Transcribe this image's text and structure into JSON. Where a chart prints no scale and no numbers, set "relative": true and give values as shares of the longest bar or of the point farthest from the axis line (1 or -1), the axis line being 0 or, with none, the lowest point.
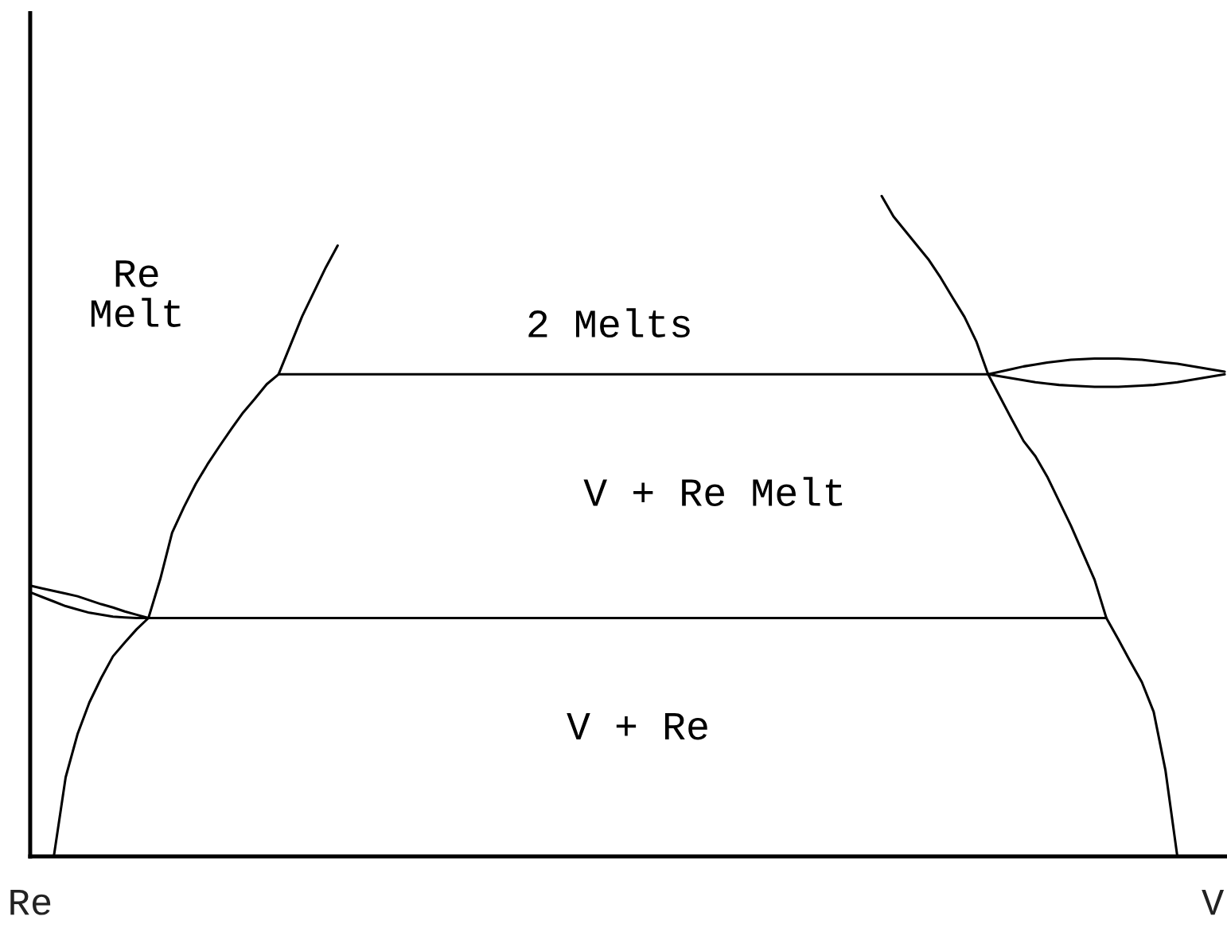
{
  "chart_data": {
    "type": "line",
    "relative": true,
    "tick_labels": "x",
    "categories": [
      "Re",
      null,
      null,
      null,
      null,
      null,
      null,
      null,
      null,
      null,
      null,
      null,
      null,
      null,
      null,
      null,
      null,
      null,
      null,
      null,
      null,
      null,
      null,
      null,
      null,
      null,
      null,
      null,
      null,
      null,
      null,
      null,
      null,
      null,
      null,
      null,
      null,
      null,
      null,
      null,
      null,
      null,
      null,
      null,
      null,
      null,
      null,
      null,
      null,
      null,
      null,
      null,
      null,
      null,
      null,
      null,
      null,
      null,
      null,
      null,
      null,
      null,
      null,
      null,
      null,
      null,
      null,
      null,
      null,
      null,
      null,
      null,
      null,
      null,
      null,
      null,
      null,
      null,
      null,
      null,
      null,
      null,
      null,
      null,
      null,
      null,
      null,
      null,
      null,
      null,
      null,
      null,
      null,
      null,
      null,
      null,
      null,
      null,
      null,
      null,
      "V",
      null
    ],
    "annotations": [
      "Re\nMelt",
      "2 Melts",
      "V + Re Melt",
      "V + Re"
    ],
    "series": [
      {
        "color": "#000000",
        "values": [
          null,
          null,
          0,
          0.12,
          0.185,
          0.233,
          0.27,
          0.303,
          0.324,
          0.344,
          0.361,
          0.42,
          0.49,
          0.529,
          0.564,
          0.594,
          0.621,
          0.647,
          0.672,
          0.693,
          0.715,
          0.73,
          0.774,
          0.818,
          0.855,
          0.892,
          0.925,
          null,
          null,
          null,
          null,
          null,
          null,
          null,
          null,
          null,
          null,
          null,
          null,
          null,
          null,
          null,
          null,
          null,
          null,
          null,
          null,
          null,
          null,
          null,
          null,
          null,
          null,
          null,
          null,
          null,
          null,
          null,
          null,
          null,
          null,
          null,
          null,
          null,
          null,
          null,
          null,
          null,
          null,
          null,
          null,
          null,
          null,
          null,
          null,
          null,
          null,
          null,
          null,
          null,
          null,
          null,
          null,
          null,
          null,
          null,
          null,
          null,
          null,
          null,
          null,
          null,
          null,
          null,
          null,
          null,
          null,
          null,
          null,
          null,
          null,
          null
        ]
      },
      {
        "color": "#000000",
        "values": [
          0.41,
          0.406,
          0.402,
          0.398,
          0.394,
          0.388,
          0.382,
          0.377,
          0.371,
          0.366,
          0.361,
          null,
          null,
          null,
          null,
          null,
          null,
          null,
          null,
          null,
          null,
          null,
          null,
          null,
          null,
          null,
          null,
          null,
          null,
          null,
          null,
          null,
          null,
          null,
          null,
          null,
          null,
          null,
          null,
          null,
          null,
          null,
          null,
          null,
          null,
          null,
          null,
          null,
          null,
          null,
          null,
          null,
          null,
          null,
          null,
          null,
          null,
          null,
          null,
          null,
          null,
          null,
          null,
          null,
          null,
          null,
          null,
          null,
          null,
          null,
          null,
          null,
          null,
          null,
          null,
          null,
          null,
          null,
          null,
          null,
          null,
          null,
          null,
          null,
          null,
          null,
          null,
          null,
          null,
          null,
          null,
          null,
          null,
          null,
          null,
          null,
          null,
          null,
          null,
          null,
          null,
          null
        ]
      },
      {
        "color": "#000000",
        "values": [
          0.4,
          0.393,
          0.386,
          0.379,
          0.374,
          0.369,
          0.366,
          0.363,
          0.362,
          0.361,
          0.361,
          0.361,
          0.361,
          0.361,
          0.361,
          0.361,
          0.361,
          0.361,
          0.361,
          0.361,
          0.361,
          0.361,
          0.361,
          0.361,
          0.361,
          0.361,
          0.361,
          0.361,
          0.361,
          0.361,
          0.361,
          0.361,
          0.361,
          0.361,
          0.361,
          0.361,
          0.361,
          0.361,
          0.361,
          0.361,
          0.361,
          0.361,
          0.361,
          0.361,
          0.361,
          0.361,
          0.361,
          0.361,
          0.361,
          0.361,
          0.361,
          0.361,
          0.361,
          0.361,
          0.361,
          0.361,
          0.361,
          0.361,
          0.361,
          0.361,
          0.361,
          0.361,
          0.361,
          0.361,
          0.361,
          0.361,
          0.361,
          0.361,
          0.361,
          0.361,
          0.361,
          0.361,
          0.361,
          0.361,
          0.361,
          0.361,
          0.361,
          0.361,
          0.361,
          0.361,
          0.361,
          0.361,
          0.361,
          0.361,
          0.361,
          0.361,
          0.361,
          0.361,
          0.361,
          0.361,
          0.361,
          0.361,
          null,
          null,
          null,
          null,
          null,
          null,
          null,
          null,
          null,
          null
        ]
      },
      {
        "color": "#000000",
        "values": [
          null,
          null,
          null,
          null,
          null,
          null,
          null,
          null,
          null,
          null,
          null,
          null,
          null,
          null,
          null,
          null,
          null,
          null,
          null,
          null,
          null,
          0.73,
          0.73,
          0.73,
          0.73,
          0.73,
          0.73,
          0.73,
          0.73,
          0.73,
          0.73,
          0.73,
          0.73,
          0.73,
          0.73,
          0.73,
          0.73,
          0.73,
          0.73,
          0.73,
          0.73,
          0.73,
          0.73,
          0.73,
          0.73,
          0.73,
          0.73,
          0.73,
          0.73,
          0.73,
          0.73,
          0.73,
          0.73,
          0.73,
          0.73,
          0.73,
          0.73,
          0.73,
          0.73,
          0.73,
          0.73,
          0.73,
          0.73,
          0.73,
          0.73,
          0.73,
          0.73,
          0.73,
          0.73,
          0.73,
          0.73,
          0.73,
          0.73,
          0.73,
          0.73,
          0.73,
          0.73,
          0.73,
          0.73,
          0.73,
          0.73,
          0.73,
          0.727,
          0.724,
          0.721,
          0.718,
          0.716,
          0.714,
          0.713,
          0.712,
          0.711,
          0.711,
          0.711,
          0.712,
          0.713,
          0.714,
          0.716,
          0.718,
          0.721,
          0.724,
          0.727,
          0.73
        ]
      },
      {
        "color": "#000000",
        "values": [
          null,
          null,
          null,
          null,
          null,
          null,
          null,
          null,
          null,
          null,
          null,
          null,
          null,
          null,
          null,
          null,
          null,
          null,
          null,
          null,
          null,
          null,
          null,
          null,
          null,
          null,
          null,
          null,
          null,
          null,
          null,
          null,
          null,
          null,
          null,
          null,
          null,
          null,
          null,
          null,
          null,
          null,
          null,
          null,
          null,
          null,
          null,
          null,
          null,
          null,
          null,
          null,
          null,
          null,
          null,
          null,
          null,
          null,
          null,
          null,
          null,
          null,
          null,
          null,
          null,
          null,
          null,
          null,
          null,
          null,
          null,
          null,
          null,
          null,
          null,
          null,
          null,
          null,
          null,
          null,
          null,
          0.73,
          0.734,
          0.738,
          0.742,
          0.745,
          0.748,
          0.75,
          0.752,
          0.753,
          0.754,
          0.754,
          0.754,
          0.753,
          0.752,
          0.75,
          0.748,
          0.746,
          0.743,
          0.74,
          0.737,
          0.734
        ]
      },
      {
        "color": "#000000",
        "values": [
          null,
          null,
          null,
          null,
          null,
          null,
          null,
          null,
          null,
          null,
          null,
          null,
          null,
          null,
          null,
          null,
          null,
          null,
          null,
          null,
          null,
          null,
          null,
          null,
          null,
          null,
          null,
          null,
          null,
          null,
          null,
          null,
          null,
          null,
          null,
          null,
          null,
          null,
          null,
          null,
          null,
          null,
          null,
          null,
          null,
          null,
          null,
          null,
          null,
          null,
          null,
          null,
          null,
          null,
          null,
          null,
          null,
          null,
          null,
          null,
          null,
          null,
          null,
          null,
          null,
          null,
          null,
          null,
          null,
          null,
          null,
          null,
          1.0,
          0.969,
          0.947,
          0.925,
          0.903,
          0.876,
          0.846,
          0.817,
          0.78,
          0.73,
          0.696,
          0.662,
          0.629,
          0.606,
          0.575,
          0.538,
          0.501,
          0.46,
          0.419,
          0.361,
          0.329,
          0.296,
          0.264,
          0.219,
          0.13,
          0,
          null,
          null,
          null,
          null
        ]
      }
    ]
  }
}
